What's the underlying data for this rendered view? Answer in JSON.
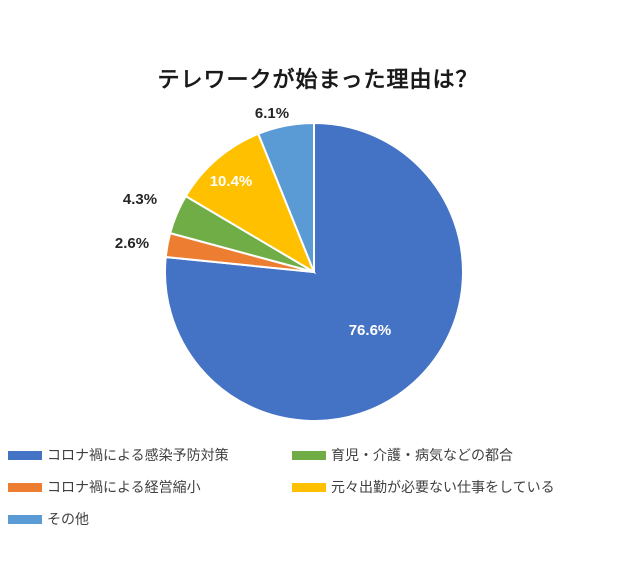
{
  "chart_data": {
    "type": "pie",
    "title": "テレワークが始まった理由は？",
    "categories": [
      "コロナ禍による感染予防対策",
      "コロナ禍による経営縮小",
      "育児・介護・病気などの都合",
      "元々出勤が必要ない仕事をしている",
      "その他"
    ],
    "values": [
      76.6,
      2.6,
      4.3,
      10.4,
      6.1
    ],
    "value_labels": [
      "76.6%",
      "2.6%",
      "4.3%",
      "10.4%",
      "6.1%"
    ],
    "colors": [
      "#4472C4",
      "#ED7D31",
      "#70AD47",
      "#FFC000",
      "#5B9BD5"
    ],
    "start_angle": "12 o'clock",
    "direction": "clockwise",
    "legend_position": "bottom"
  }
}
